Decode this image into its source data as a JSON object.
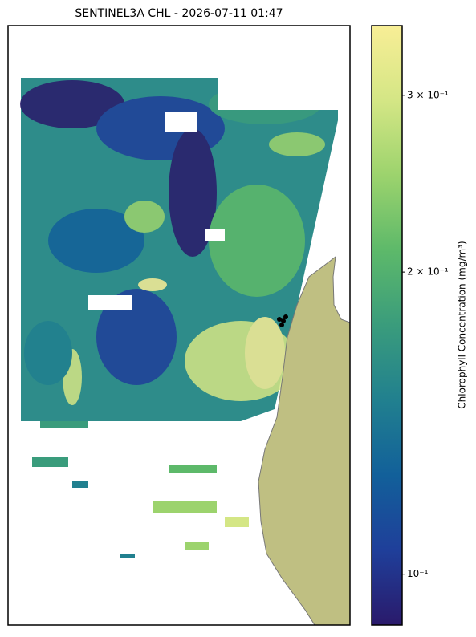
{
  "chart_data": {
    "type": "map",
    "title": "SENTINEL3A CHL - 2026-07-11 01:47",
    "colorbar": {
      "label": "Chlorophyll Concentration (mg/m³)",
      "scale": "log",
      "lim": [
        0.089,
        0.352
      ],
      "ticks": [
        {
          "value": 0.1,
          "label": "10⁻¹"
        },
        {
          "value": 0.2,
          "label": "2 × 10⁻¹"
        },
        {
          "value": 0.3,
          "label": "3 × 10⁻¹"
        }
      ],
      "colors": [
        "#2a1a6b",
        "#1f3f9a",
        "#12609a",
        "#21808f",
        "#3a9c7c",
        "#5db96a",
        "#9cd36d",
        "#d4e685",
        "#f8ee96"
      ]
    },
    "land_color": "#bfbf82"
  }
}
